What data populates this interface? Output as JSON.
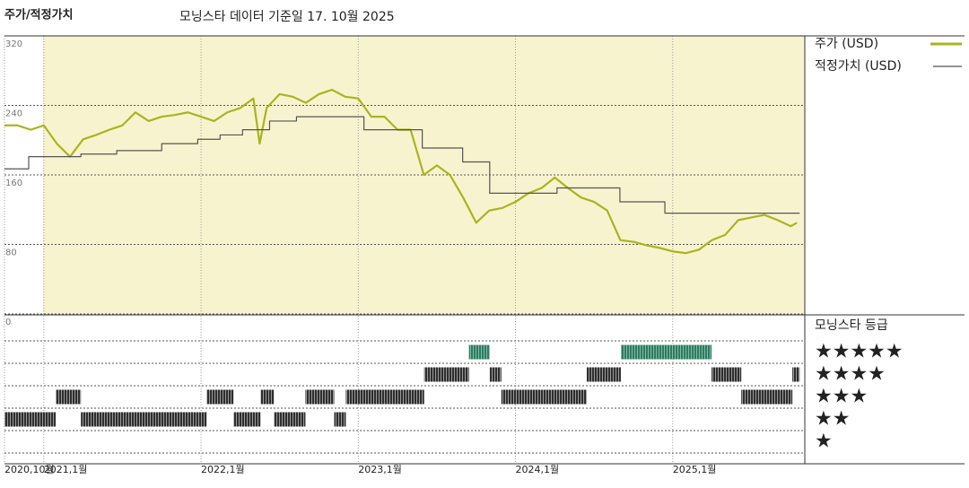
{
  "chart_data": {
    "type": "line",
    "title": "주가/적정가치",
    "subtitle": "모닝스타 데이터 기준일 17. 10월 2025",
    "xlim": [
      2020.75,
      2025.84
    ],
    "xticks": [
      {
        "value": 2020.75,
        "label": "2020,10월"
      },
      {
        "value": 2021.0,
        "label": "2021,1월"
      },
      {
        "value": 2022.0,
        "label": "2022,1월"
      },
      {
        "value": 2023.0,
        "label": "2023,1월"
      },
      {
        "value": 2024.0,
        "label": "2024,1월"
      },
      {
        "value": 2025.0,
        "label": "2025,1월"
      }
    ],
    "ylim": [
      0,
      320
    ],
    "yticks": [
      0,
      80,
      160,
      240,
      320
    ],
    "grid": true,
    "series": [
      {
        "name": "주가 (USD)",
        "color": "#a9b41f",
        "x": [
          2020.75,
          2020.833,
          2020.917,
          2021.0,
          2021.083,
          2021.167,
          2021.25,
          2021.333,
          2021.417,
          2021.5,
          2021.583,
          2021.667,
          2021.75,
          2021.833,
          2021.917,
          2022.0,
          2022.083,
          2022.167,
          2022.25,
          2022.333,
          2022.373,
          2022.417,
          2022.5,
          2022.583,
          2022.667,
          2022.75,
          2022.833,
          2022.917,
          2023.0,
          2023.083,
          2023.167,
          2023.25,
          2023.333,
          2023.417,
          2023.5,
          2023.583,
          2023.667,
          2023.75,
          2023.833,
          2023.917,
          2024.0,
          2024.083,
          2024.167,
          2024.25,
          2024.333,
          2024.417,
          2024.5,
          2024.583,
          2024.667,
          2024.75,
          2024.833,
          2024.917,
          2025.0,
          2025.083,
          2025.167,
          2025.25,
          2025.333,
          2025.417,
          2025.5,
          2025.583,
          2025.667,
          2025.75,
          2025.79
        ],
        "values": [
          217,
          217,
          212,
          217,
          196,
          181,
          201,
          206,
          212,
          217,
          232,
          222,
          227,
          229,
          232,
          227,
          222,
          232,
          237,
          248,
          196,
          237,
          253,
          250,
          243,
          253,
          258,
          250,
          248,
          227,
          227,
          212,
          212,
          160,
          171,
          160,
          134,
          105,
          119,
          122,
          129,
          139,
          145,
          157,
          145,
          134,
          129,
          119,
          85,
          83,
          79,
          76,
          72,
          70,
          74,
          85,
          91,
          108,
          111,
          114,
          108,
          101,
          105
        ]
      },
      {
        "name": "적정가치 (USD)",
        "color": "#555555",
        "line_style": "step",
        "x": [
          2020.75,
          2020.904,
          2021.236,
          2021.464,
          2021.75,
          2021.979,
          2022.121,
          2022.264,
          2022.436,
          2022.607,
          2023.036,
          2023.407,
          2023.664,
          2023.836,
          2024.264,
          2024.664,
          2024.95,
          2025.807
        ],
        "values": [
          167,
          181,
          184,
          188,
          196,
          201,
          206,
          212,
          222,
          227,
          212,
          191,
          175,
          139,
          145,
          129,
          116,
          116
        ]
      }
    ],
    "rating_title": "모닝스타 등급",
    "rating_ylim": [
      0.5,
      5.5
    ],
    "rating_ticks": [
      {
        "value": 5,
        "label": "★★★★★"
      },
      {
        "value": 4,
        "label": "★★★★"
      },
      {
        "value": 3,
        "label": "★★★"
      },
      {
        "value": 2,
        "label": "★★"
      },
      {
        "value": 1,
        "label": "★"
      }
    ],
    "rating_edges": [
      2020.75,
      2021.076,
      2021.236,
      2022.036,
      2022.207,
      2022.379,
      2022.464,
      2022.664,
      2022.847,
      2022.921,
      2023.419,
      2023.704,
      2023.836,
      2023.91,
      2024.453,
      2024.67,
      2025.247,
      2025.436,
      2025.761,
      2025.807
    ],
    "ratings": [
      2,
      3,
      2,
      3,
      2,
      3,
      2,
      3,
      2,
      3,
      4,
      5,
      4,
      3,
      4,
      5,
      4,
      3,
      4
    ],
    "rating_colors": {
      "default": "url(#hatch-dark)",
      "top": "url(#hatch-green)"
    }
  }
}
